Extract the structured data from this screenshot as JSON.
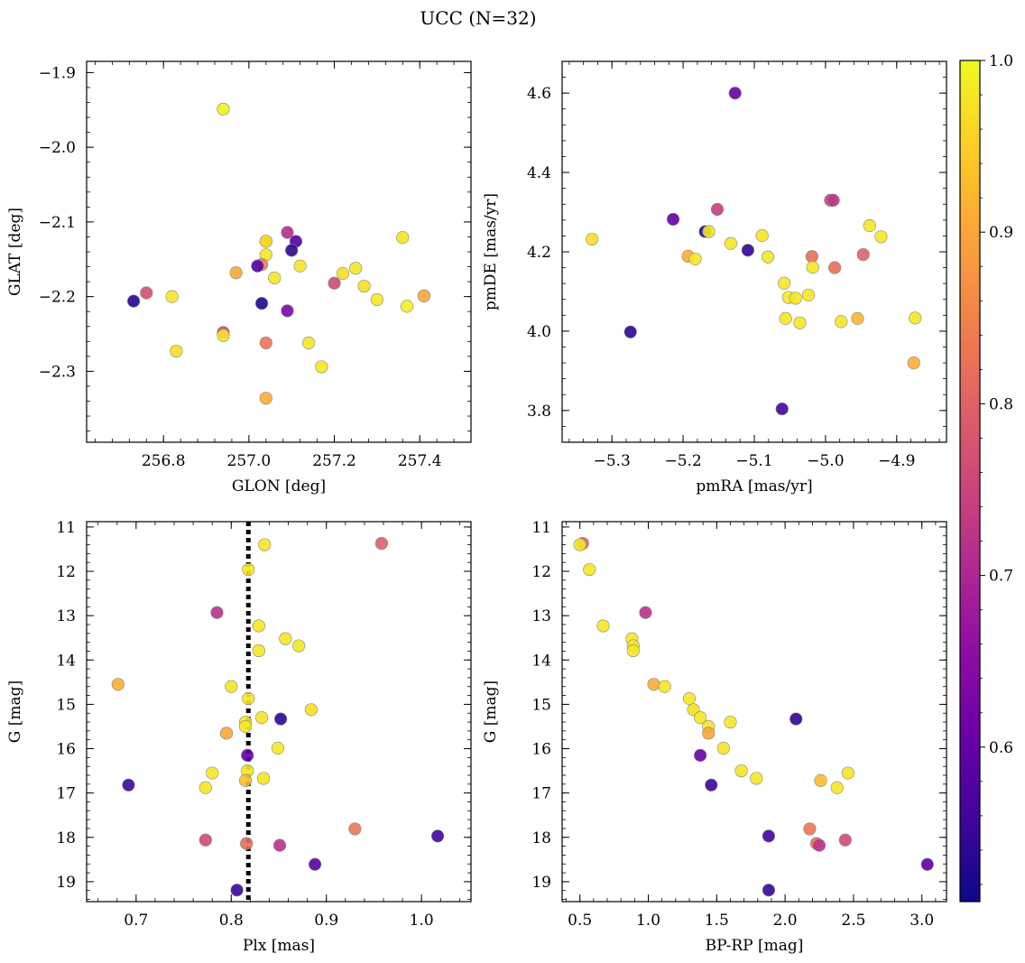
{
  "figure": {
    "title": "UCC (N=32)"
  },
  "colorbar": {
    "ticks": [
      0.6,
      0.7,
      0.8,
      0.9,
      1.0
    ],
    "tick_labels": [
      "0.6",
      "0.7",
      "0.8",
      "0.9",
      "1.0"
    ],
    "range": [
      0.51,
      1.0
    ],
    "colormap": "plasma"
  },
  "chart_data": [
    {
      "type": "scatter",
      "id": "glon-glat",
      "xlabel": "GLON [deg]",
      "ylabel": "GLAT [deg]",
      "xlim": [
        256.62,
        257.52
      ],
      "ylim": [
        -2.395,
        -1.885
      ],
      "y_inverted": false,
      "xticks": [
        256.8,
        257.0,
        257.2,
        257.4
      ],
      "xtick_labels": [
        "256.8",
        "257.0",
        "257.2",
        "257.4"
      ],
      "yticks": [
        -1.9,
        -2.0,
        -2.1,
        -2.2,
        -2.3
      ],
      "ytick_labels": [
        "−1.9",
        "−2.0",
        "−2.1",
        "−2.2",
        "−2.3"
      ],
      "points": [
        {
          "x": 256.94,
          "y": -1.949,
          "c": 0.99
        },
        {
          "x": 257.04,
          "y": -2.126,
          "c": 0.97
        },
        {
          "x": 257.04,
          "y": -2.144,
          "c": 0.98
        },
        {
          "x": 257.09,
          "y": -2.114,
          "c": 0.71
        },
        {
          "x": 257.11,
          "y": -2.126,
          "c": 0.58
        },
        {
          "x": 257.1,
          "y": -2.138,
          "c": 0.54
        },
        {
          "x": 257.12,
          "y": -2.159,
          "c": 0.98
        },
        {
          "x": 257.06,
          "y": -2.175,
          "c": 0.98
        },
        {
          "x": 257.03,
          "y": -2.157,
          "c": 0.84
        },
        {
          "x": 257.02,
          "y": -2.159,
          "c": 0.58
        },
        {
          "x": 256.97,
          "y": -2.168,
          "c": 0.9
        },
        {
          "x": 257.36,
          "y": -2.121,
          "c": 0.98
        },
        {
          "x": 257.25,
          "y": -2.162,
          "c": 0.98
        },
        {
          "x": 257.22,
          "y": -2.169,
          "c": 0.97
        },
        {
          "x": 257.27,
          "y": -2.186,
          "c": 0.97
        },
        {
          "x": 257.2,
          "y": -2.182,
          "c": 0.76
        },
        {
          "x": 257.3,
          "y": -2.204,
          "c": 0.98
        },
        {
          "x": 257.41,
          "y": -2.199,
          "c": 0.9
        },
        {
          "x": 257.37,
          "y": -2.213,
          "c": 0.99
        },
        {
          "x": 256.73,
          "y": -2.206,
          "c": 0.53
        },
        {
          "x": 256.76,
          "y": -2.195,
          "c": 0.77
        },
        {
          "x": 256.82,
          "y": -2.2,
          "c": 0.98
        },
        {
          "x": 257.03,
          "y": -2.209,
          "c": 0.53
        },
        {
          "x": 257.09,
          "y": -2.219,
          "c": 0.63
        },
        {
          "x": 256.94,
          "y": -2.248,
          "c": 0.76
        },
        {
          "x": 256.94,
          "y": -2.252,
          "c": 0.98
        },
        {
          "x": 256.83,
          "y": -2.273,
          "c": 0.97
        },
        {
          "x": 257.04,
          "y": -2.262,
          "c": 0.83
        },
        {
          "x": 257.14,
          "y": -2.262,
          "c": 0.98
        },
        {
          "x": 257.17,
          "y": -2.294,
          "c": 0.98
        },
        {
          "x": 257.04,
          "y": -2.336,
          "c": 0.91
        },
        {
          "x": 257.04,
          "y": -2.126,
          "c": 0.96
        }
      ]
    },
    {
      "type": "scatter",
      "id": "pmra-pmde",
      "xlabel": "pmRA [mas/yr]",
      "ylabel": "pmDE [mas/yr]",
      "xlim": [
        -5.37,
        -4.83
      ],
      "ylim": [
        3.72,
        4.68
      ],
      "y_inverted": false,
      "xticks": [
        -5.3,
        -5.2,
        -5.1,
        -5.0,
        -4.9
      ],
      "xtick_labels": [
        "−5.3",
        "−5.2",
        "−5.1",
        "−5.0",
        "−4.9"
      ],
      "yticks": [
        3.8,
        4.0,
        4.2,
        4.4,
        4.6
      ],
      "ytick_labels": [
        "3.8",
        "4.0",
        "4.2",
        "4.4",
        "4.6"
      ],
      "points": [
        {
          "x": -5.127,
          "y": 4.6,
          "c": 0.6
        },
        {
          "x": -4.993,
          "y": 4.33,
          "c": 0.75
        },
        {
          "x": -4.989,
          "y": 4.33,
          "c": 0.73
        },
        {
          "x": -5.152,
          "y": 4.307,
          "c": 0.74
        },
        {
          "x": -5.214,
          "y": 4.282,
          "c": 0.6
        },
        {
          "x": -4.938,
          "y": 4.266,
          "c": 0.98
        },
        {
          "x": -5.169,
          "y": 4.251,
          "c": 0.54
        },
        {
          "x": -5.164,
          "y": 4.251,
          "c": 0.98
        },
        {
          "x": -5.089,
          "y": 4.241,
          "c": 0.98
        },
        {
          "x": -4.922,
          "y": 4.238,
          "c": 0.98
        },
        {
          "x": -5.328,
          "y": 4.232,
          "c": 0.97
        },
        {
          "x": -5.133,
          "y": 4.221,
          "c": 0.98
        },
        {
          "x": -5.109,
          "y": 4.204,
          "c": 0.54
        },
        {
          "x": -4.947,
          "y": 4.193,
          "c": 0.8
        },
        {
          "x": -5.193,
          "y": 4.189,
          "c": 0.91
        },
        {
          "x": -5.019,
          "y": 4.188,
          "c": 0.82
        },
        {
          "x": -5.081,
          "y": 4.187,
          "c": 0.98
        },
        {
          "x": -5.183,
          "y": 4.182,
          "c": 0.98
        },
        {
          "x": -5.018,
          "y": 4.161,
          "c": 0.98
        },
        {
          "x": -4.987,
          "y": 4.16,
          "c": 0.82
        },
        {
          "x": -5.058,
          "y": 4.121,
          "c": 0.98
        },
        {
          "x": -5.024,
          "y": 4.091,
          "c": 0.98
        },
        {
          "x": -5.052,
          "y": 4.085,
          "c": 0.98
        },
        {
          "x": -5.042,
          "y": 4.083,
          "c": 0.98
        },
        {
          "x": -5.056,
          "y": 4.032,
          "c": 0.98
        },
        {
          "x": -4.874,
          "y": 4.033,
          "c": 0.98
        },
        {
          "x": -4.955,
          "y": 4.032,
          "c": 0.92
        },
        {
          "x": -4.978,
          "y": 4.024,
          "c": 0.98
        },
        {
          "x": -5.036,
          "y": 4.021,
          "c": 0.98
        },
        {
          "x": -5.274,
          "y": 3.998,
          "c": 0.54
        },
        {
          "x": -4.876,
          "y": 3.92,
          "c": 0.91
        },
        {
          "x": -5.061,
          "y": 3.804,
          "c": 0.56
        }
      ]
    },
    {
      "type": "scatter",
      "id": "plx-g",
      "xlabel": "Plx [mas]",
      "ylabel": "G [mag]",
      "xlim": [
        0.648,
        1.052
      ],
      "ylim": [
        19.45,
        10.88
      ],
      "y_inverted": true,
      "xticks": [
        0.7,
        0.8,
        0.9,
        1.0
      ],
      "xtick_labels": [
        "0.7",
        "0.8",
        "0.9",
        "1.0"
      ],
      "yticks": [
        11,
        12,
        13,
        14,
        15,
        16,
        17,
        18,
        19
      ],
      "ytick_labels": [
        "11",
        "12",
        "13",
        "14",
        "15",
        "16",
        "17",
        "18",
        "19"
      ],
      "vline": 0.818,
      "points": [
        {
          "x": 0.958,
          "y": 11.37,
          "c": 0.8
        },
        {
          "x": 0.835,
          "y": 11.4,
          "c": 0.98
        },
        {
          "x": 0.818,
          "y": 11.96,
          "c": 0.98
        },
        {
          "x": 0.785,
          "y": 12.93,
          "c": 0.72
        },
        {
          "x": 0.829,
          "y": 13.23,
          "c": 0.98
        },
        {
          "x": 0.857,
          "y": 13.52,
          "c": 0.98
        },
        {
          "x": 0.871,
          "y": 13.68,
          "c": 0.98
        },
        {
          "x": 0.829,
          "y": 13.79,
          "c": 0.98
        },
        {
          "x": 0.681,
          "y": 14.55,
          "c": 0.91
        },
        {
          "x": 0.8,
          "y": 14.6,
          "c": 0.98
        },
        {
          "x": 0.818,
          "y": 14.87,
          "c": 0.98
        },
        {
          "x": 0.884,
          "y": 15.12,
          "c": 0.97
        },
        {
          "x": 0.832,
          "y": 15.3,
          "c": 0.98
        },
        {
          "x": 0.852,
          "y": 15.33,
          "c": 0.54
        },
        {
          "x": 0.815,
          "y": 15.4,
          "c": 0.98
        },
        {
          "x": 0.815,
          "y": 15.5,
          "c": 0.98
        },
        {
          "x": 0.795,
          "y": 15.65,
          "c": 0.9
        },
        {
          "x": 0.849,
          "y": 15.99,
          "c": 0.98
        },
        {
          "x": 0.817,
          "y": 16.15,
          "c": 0.6
        },
        {
          "x": 0.817,
          "y": 16.5,
          "c": 0.98
        },
        {
          "x": 0.78,
          "y": 16.55,
          "c": 0.98
        },
        {
          "x": 0.834,
          "y": 16.67,
          "c": 0.98
        },
        {
          "x": 0.815,
          "y": 16.72,
          "c": 0.93
        },
        {
          "x": 0.692,
          "y": 16.82,
          "c": 0.55
        },
        {
          "x": 0.773,
          "y": 16.88,
          "c": 0.98
        },
        {
          "x": 0.93,
          "y": 17.81,
          "c": 0.83
        },
        {
          "x": 1.017,
          "y": 17.97,
          "c": 0.56
        },
        {
          "x": 0.773,
          "y": 18.06,
          "c": 0.76
        },
        {
          "x": 0.816,
          "y": 18.14,
          "c": 0.82
        },
        {
          "x": 0.851,
          "y": 18.18,
          "c": 0.72
        },
        {
          "x": 0.888,
          "y": 18.61,
          "c": 0.59
        },
        {
          "x": 0.806,
          "y": 19.19,
          "c": 0.55
        }
      ]
    },
    {
      "type": "scatter",
      "id": "bprp-g",
      "xlabel": "BP-RP [mag]",
      "ylabel": "G [mag]",
      "xlim": [
        0.37,
        3.18
      ],
      "ylim": [
        19.45,
        10.88
      ],
      "y_inverted": true,
      "xticks": [
        0.5,
        1.0,
        1.5,
        2.0,
        2.5,
        3.0
      ],
      "xtick_labels": [
        "0.5",
        "1.0",
        "1.5",
        "2.0",
        "2.5",
        "3.0"
      ],
      "yticks": [
        11,
        12,
        13,
        14,
        15,
        16,
        17,
        18,
        19
      ],
      "ytick_labels": [
        "11",
        "12",
        "13",
        "14",
        "15",
        "16",
        "17",
        "18",
        "19"
      ],
      "points": [
        {
          "x": 0.52,
          "y": 11.37,
          "c": 0.8
        },
        {
          "x": 0.5,
          "y": 11.4,
          "c": 0.98
        },
        {
          "x": 0.57,
          "y": 11.96,
          "c": 0.98
        },
        {
          "x": 0.98,
          "y": 12.93,
          "c": 0.72
        },
        {
          "x": 0.67,
          "y": 13.23,
          "c": 0.98
        },
        {
          "x": 0.88,
          "y": 13.52,
          "c": 0.98
        },
        {
          "x": 0.89,
          "y": 13.68,
          "c": 0.98
        },
        {
          "x": 0.89,
          "y": 13.79,
          "c": 0.98
        },
        {
          "x": 1.04,
          "y": 14.55,
          "c": 0.91
        },
        {
          "x": 1.12,
          "y": 14.6,
          "c": 0.98
        },
        {
          "x": 1.3,
          "y": 14.87,
          "c": 0.98
        },
        {
          "x": 1.33,
          "y": 15.12,
          "c": 0.97
        },
        {
          "x": 1.38,
          "y": 15.3,
          "c": 0.98
        },
        {
          "x": 2.08,
          "y": 15.33,
          "c": 0.54
        },
        {
          "x": 1.6,
          "y": 15.4,
          "c": 0.98
        },
        {
          "x": 1.44,
          "y": 15.5,
          "c": 0.98
        },
        {
          "x": 1.44,
          "y": 15.65,
          "c": 0.9
        },
        {
          "x": 1.55,
          "y": 15.99,
          "c": 0.98
        },
        {
          "x": 1.38,
          "y": 16.15,
          "c": 0.6
        },
        {
          "x": 1.68,
          "y": 16.5,
          "c": 0.98
        },
        {
          "x": 2.46,
          "y": 16.55,
          "c": 0.98
        },
        {
          "x": 1.79,
          "y": 16.67,
          "c": 0.98
        },
        {
          "x": 2.26,
          "y": 16.72,
          "c": 0.93
        },
        {
          "x": 1.46,
          "y": 16.82,
          "c": 0.55
        },
        {
          "x": 2.38,
          "y": 16.88,
          "c": 0.98
        },
        {
          "x": 2.18,
          "y": 17.81,
          "c": 0.83
        },
        {
          "x": 1.88,
          "y": 17.97,
          "c": 0.56
        },
        {
          "x": 2.44,
          "y": 18.06,
          "c": 0.76
        },
        {
          "x": 2.23,
          "y": 18.14,
          "c": 0.82
        },
        {
          "x": 2.25,
          "y": 18.18,
          "c": 0.72
        },
        {
          "x": 3.04,
          "y": 18.61,
          "c": 0.59
        },
        {
          "x": 1.88,
          "y": 19.19,
          "c": 0.55
        }
      ]
    }
  ]
}
